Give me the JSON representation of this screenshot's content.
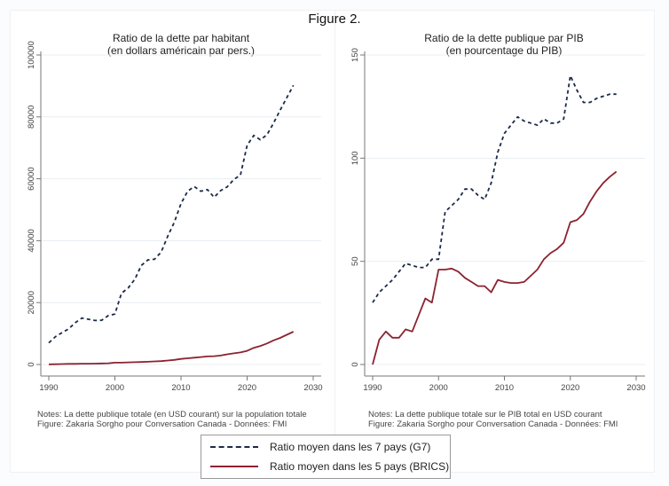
{
  "figure_title": "Figure 2.",
  "colors": {
    "g7": "#1b2a48",
    "brics": "#8c2230",
    "grid": "#e8eef2",
    "axis": "#777777"
  },
  "legend": {
    "items": [
      {
        "label": "Ratio moyen dans les 7 pays (G7)",
        "style": "dashed",
        "color": "#1b2a48"
      },
      {
        "label": "Ratio moyen dans les 5 pays (BRICS)",
        "style": "solid",
        "color": "#8c2230"
      }
    ]
  },
  "panels": [
    {
      "title_line1": "Ratio de la dette par habitant",
      "title_line2": "(en dollars américain par pers.)",
      "note_line1": "Notes: La dette publique totale (en USD courant) sur la population totale",
      "note_line2": "Figure: Zakaria Sorgho pour Conversation Canada - Données: FMI"
    },
    {
      "title_line1": "Ratio de la dette publique par PIB",
      "title_line2": "(en pourcentage du PIB)",
      "note_line1": "Notes: La dette publique totale sur le PIB total en USD courant",
      "note_line2": "Figure: Zakaria Sorgho pour Conversation Canada - Données: FMI"
    }
  ],
  "chart_data": [
    {
      "type": "line",
      "title": "Ratio de la dette par habitant (en dollars américain par pers.)",
      "xlabel": "",
      "ylabel": "",
      "xlim": [
        1989,
        2031
      ],
      "ylim": [
        -2500,
        102000
      ],
      "xticks": [
        1990,
        2000,
        2010,
        2020,
        2030
      ],
      "yticks": [
        0,
        20000,
        40000,
        60000,
        80000,
        100000
      ],
      "grid": true,
      "legend": "bottom",
      "x": [
        1990,
        1991,
        1992,
        1993,
        1994,
        1995,
        1996,
        1997,
        1998,
        1999,
        2000,
        2001,
        2002,
        2003,
        2004,
        2005,
        2006,
        2007,
        2008,
        2009,
        2010,
        2011,
        2012,
        2013,
        2014,
        2015,
        2016,
        2017,
        2018,
        2019,
        2020,
        2021,
        2022,
        2023,
        2024,
        2025,
        2026,
        2027
      ],
      "series": [
        {
          "name": "Ratio moyen dans les 7 pays (G7)",
          "style": "dashed",
          "values": [
            7000,
            9000,
            10300,
            11500,
            13500,
            15000,
            14600,
            14200,
            14300,
            15800,
            16300,
            23000,
            24700,
            27500,
            32000,
            33800,
            34000,
            36300,
            41500,
            46000,
            52000,
            56000,
            57500,
            56000,
            56500,
            54000,
            56200,
            57400,
            59800,
            61200,
            70800,
            74000,
            72600,
            74200,
            78000,
            82200,
            86200,
            90200
          ]
        },
        {
          "name": "Ratio moyen dans les 5 pays (BRICS)",
          "style": "solid",
          "values": [
            50,
            100,
            150,
            200,
            200,
            250,
            250,
            300,
            350,
            400,
            600,
            600,
            700,
            750,
            800,
            900,
            1000,
            1100,
            1300,
            1500,
            1800,
            2000,
            2200,
            2400,
            2600,
            2700,
            2900,
            3300,
            3600,
            3900,
            4400,
            5400,
            6000,
            6800,
            7800,
            8600,
            9600,
            10600
          ]
        }
      ]
    },
    {
      "type": "line",
      "title": "Ratio de la dette publique par PIB (en pourcentage du PIB)",
      "xlabel": "",
      "ylabel": "",
      "xlim": [
        1989,
        2031
      ],
      "ylim": [
        -4,
        153
      ],
      "xticks": [
        1990,
        2000,
        2010,
        2020,
        2030
      ],
      "yticks": [
        0,
        50,
        100,
        150
      ],
      "grid": true,
      "legend": "bottom",
      "x": [
        1990,
        1991,
        1992,
        1993,
        1994,
        1995,
        1996,
        1997,
        1998,
        1999,
        2000,
        2001,
        2002,
        2003,
        2004,
        2005,
        2006,
        2007,
        2008,
        2009,
        2010,
        2011,
        2012,
        2013,
        2014,
        2015,
        2016,
        2017,
        2018,
        2019,
        2020,
        2021,
        2022,
        2023,
        2024,
        2025,
        2026,
        2027
      ],
      "series": [
        {
          "name": "Ratio moyen dans les 7 pays (G7)",
          "style": "dashed",
          "values": [
            30,
            35,
            38,
            41,
            45,
            49,
            48,
            47,
            47,
            51,
            51,
            74,
            77,
            80,
            85,
            85,
            82,
            80,
            88,
            103,
            112,
            116,
            120,
            118,
            117,
            116,
            119,
            117,
            117,
            119,
            140,
            133,
            127,
            127,
            129,
            130,
            131,
            131
          ]
        },
        {
          "name": "Ratio moyen dans les 5 pays (BRICS)",
          "style": "solid",
          "values": [
            0,
            12,
            16,
            13,
            13,
            17,
            16,
            24,
            32,
            30,
            46,
            46,
            46.5,
            45,
            42,
            40,
            38,
            38,
            35,
            41,
            40,
            39.5,
            39.5,
            40,
            43,
            46,
            51,
            54,
            56,
            59,
            69,
            70,
            73,
            79,
            84,
            88,
            91,
            93.5
          ]
        }
      ]
    }
  ]
}
